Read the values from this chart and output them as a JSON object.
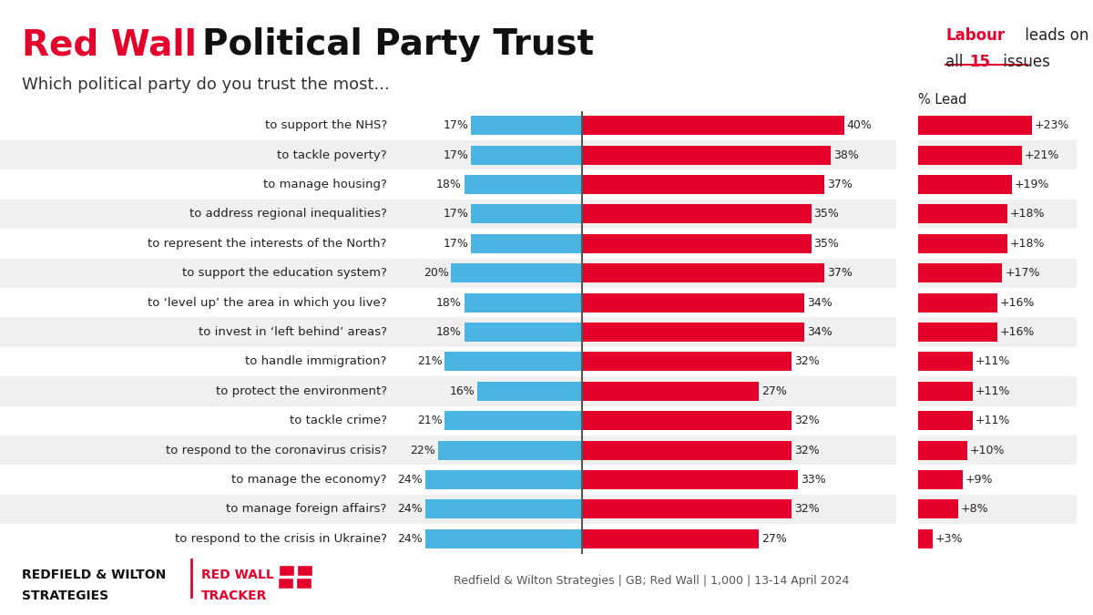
{
  "title_red": "Red Wall",
  "title_black": "Political Party Trust",
  "subtitle": "Which political party do you trust the most...",
  "categories": [
    "to support the NHS?",
    "to tackle poverty?",
    "to manage housing?",
    "to address regional inequalities?",
    "to represent the interests of the North?",
    "to support the education system?",
    "to ‘level up’ the area in which you live?",
    "to invest in ‘left behind’ areas?",
    "to handle immigration?",
    "to protect the environment?",
    "to tackle crime?",
    "to respond to the coronavirus crisis?",
    "to manage the economy?",
    "to manage foreign affairs?",
    "to respond to the crisis in Ukraine?"
  ],
  "con_values": [
    17,
    17,
    18,
    17,
    17,
    20,
    18,
    18,
    21,
    16,
    21,
    22,
    24,
    24,
    24
  ],
  "lab_values": [
    40,
    38,
    37,
    35,
    35,
    37,
    34,
    34,
    32,
    27,
    32,
    32,
    33,
    32,
    27
  ],
  "leads": [
    23,
    21,
    19,
    18,
    18,
    17,
    16,
    16,
    11,
    11,
    11,
    10,
    9,
    8,
    3
  ],
  "con_color": "#4ab5e3",
  "lab_color": "#e4002b",
  "lead_color": "#e4002b",
  "row_bg_odd": "#f0f0f0",
  "row_bg_even": "#ffffff",
  "center_line_color": "#555555",
  "footnote": "Redfield & Wilton Strategies | GB; Red Wall | 1,000 | 13-14 April 2024",
  "title_fontsize": 28,
  "subtitle_fontsize": 13,
  "bar_label_fontsize": 9,
  "cat_label_fontsize": 9.5,
  "lead_label_fontsize": 9,
  "footnote_fontsize": 9
}
